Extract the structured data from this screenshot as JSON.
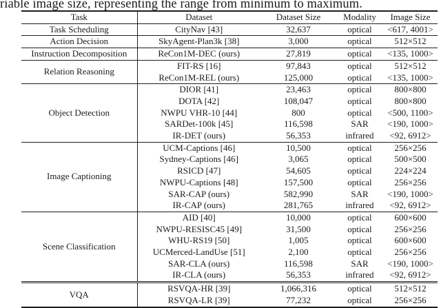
{
  "caption": "riable image size, representing the range from minimum to maximum.",
  "colors": {
    "text": "#1b1b1b",
    "rule": "#1c1c1c",
    "background": "#ffffff"
  },
  "table": {
    "headers": [
      "Task",
      "Dataset",
      "Dataset Size",
      "Modality",
      "Image Size"
    ],
    "groups": [
      {
        "task": "Task Scheduling",
        "separator": "single",
        "rows": [
          {
            "dataset": "CityNav [43]",
            "size": "32,637",
            "modality": "optical",
            "image_size": "<617, 4001>"
          }
        ]
      },
      {
        "task": "Action Decision",
        "separator": "single",
        "rows": [
          {
            "dataset": "SkyAgent-Plan3k [38]",
            "size": "3,000",
            "modality": "optical",
            "image_size": "512×512"
          }
        ]
      },
      {
        "task": "Instruction Decomposition",
        "separator": "single",
        "rows": [
          {
            "dataset": "ReCon1M-DEC (ours)",
            "size": "27,819",
            "modality": "optical",
            "image_size": "<135, 1000>"
          }
        ]
      },
      {
        "task": "Relation Reasoning",
        "separator": "single",
        "rows": [
          {
            "dataset": "FIT-RS [16]",
            "size": "97,843",
            "modality": "optical",
            "image_size": "512×512"
          },
          {
            "dataset": "ReCon1M-REL (ours)",
            "size": "125,000",
            "modality": "optical",
            "image_size": "<135, 1000>"
          }
        ]
      },
      {
        "task": "Object Detection",
        "separator": "single",
        "rows": [
          {
            "dataset": "DIOR [41]",
            "size": "23,463",
            "modality": "optical",
            "image_size": "800×800"
          },
          {
            "dataset": "DOTA [42]",
            "size": "108,047",
            "modality": "optical",
            "image_size": "800×800"
          },
          {
            "dataset": "NWPU VHR-10 [44]",
            "size": "800",
            "modality": "optical",
            "image_size": "<500, 1100>"
          },
          {
            "dataset": "SARDet-100k [45]",
            "size": "116,598",
            "modality": "SAR",
            "image_size": "<190, 1000>"
          },
          {
            "dataset": "IR-DET (ours)",
            "size": "56,353",
            "modality": "infrared",
            "image_size": "<92, 6912>"
          }
        ]
      },
      {
        "task": "Image Captioning",
        "separator": "single",
        "rows": [
          {
            "dataset": "UCM-Captions [46]",
            "size": "10,500",
            "modality": "optical",
            "image_size": "256×256"
          },
          {
            "dataset": "Sydney-Captions [46]",
            "size": "3,065",
            "modality": "optical",
            "image_size": "500×500"
          },
          {
            "dataset": "RSICD [47]",
            "size": "54,605",
            "modality": "optical",
            "image_size": "224×224"
          },
          {
            "dataset": "NWPU-Captions [48]",
            "size": "157,500",
            "modality": "optical",
            "image_size": "256×256"
          },
          {
            "dataset": "SAR-CAP (ours)",
            "size": "582,990",
            "modality": "SAR",
            "image_size": "<190, 1000>"
          },
          {
            "dataset": "IR-CAP (ours)",
            "size": "281,765",
            "modality": "infrared",
            "image_size": "<92, 6912>"
          }
        ]
      },
      {
        "task": "Scene Classification",
        "separator": "single",
        "rows": [
          {
            "dataset": "AID [40]",
            "size": "10,000",
            "modality": "optical",
            "image_size": "600×600"
          },
          {
            "dataset": "NWPU-RESISC45 [49]",
            "size": "31,500",
            "modality": "optical",
            "image_size": "256×256"
          },
          {
            "dataset": "WHU-RS19 [50]",
            "size": "1,005",
            "modality": "optical",
            "image_size": "600×600"
          },
          {
            "dataset": "UCMerced-LandUse [51]",
            "size": "2,100",
            "modality": "optical",
            "image_size": "256×256"
          },
          {
            "dataset": "SAR-CLA (ours)",
            "size": "116,598",
            "modality": "SAR",
            "image_size": "<190, 1000>"
          },
          {
            "dataset": "IR-CLA (ours)",
            "size": "56,353",
            "modality": "infrared",
            "image_size": "<92, 6912>"
          }
        ]
      },
      {
        "task": "VQA",
        "separator": "double",
        "rows": [
          {
            "dataset": "RSVQA-HR [39]",
            "size": "1,066,316",
            "modality": "optical",
            "image_size": "512×512"
          },
          {
            "dataset": "RSVQA-LR [39]",
            "size": "77,232",
            "modality": "optical",
            "image_size": "256×256"
          }
        ]
      }
    ]
  }
}
